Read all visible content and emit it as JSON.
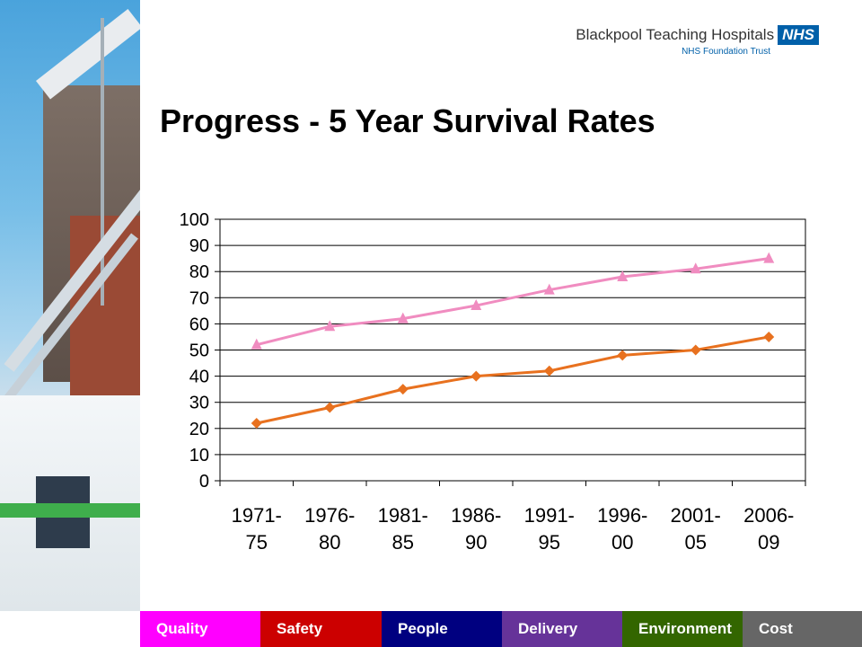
{
  "header": {
    "org_name": "Blackpool Teaching Hospitals",
    "nhs_badge": "NHS",
    "org_sub": "NHS Foundation Trust"
  },
  "title": "Progress - 5 Year Survival Rates",
  "chart_data": {
    "type": "line",
    "categories": [
      "1971-75",
      "1976-80",
      "1981-85",
      "1986-90",
      "1991-95",
      "1996-00",
      "2001-05",
      "2006-09"
    ],
    "category_lines": [
      [
        "1971-",
        "75"
      ],
      [
        "1976-",
        "80"
      ],
      [
        "1981-",
        "85"
      ],
      [
        "1986-",
        "90"
      ],
      [
        "1991-",
        "95"
      ],
      [
        "1996-",
        "00"
      ],
      [
        "2001-",
        "05"
      ],
      [
        "2006-",
        "09"
      ]
    ],
    "series": [
      {
        "values": [
          52,
          59,
          62,
          67,
          73,
          78,
          81,
          85
        ],
        "color": "#f08cc0",
        "marker": "triangle"
      },
      {
        "values": [
          22,
          28,
          35,
          40,
          42,
          48,
          50,
          55
        ],
        "color": "#e8711f",
        "marker": "diamond"
      }
    ],
    "ylim": [
      0,
      100
    ],
    "yticks": [
      0,
      10,
      20,
      30,
      40,
      50,
      60,
      70,
      80,
      90,
      100
    ],
    "ytick_labels": [
      "0",
      "10",
      "20",
      "30",
      "40",
      "50",
      "60",
      "70",
      "80",
      "90",
      "100"
    ],
    "xlabel": "",
    "ylabel": "",
    "grid": true
  },
  "footer": {
    "items": [
      {
        "label": "Quality",
        "color": "#ff00ff"
      },
      {
        "label": "Safety",
        "color": "#cc0000"
      },
      {
        "label": "People",
        "color": "#000080"
      },
      {
        "label": "Delivery",
        "color": "#663399"
      },
      {
        "label": "Environment",
        "color": "#336600"
      },
      {
        "label": "Cost",
        "color": "#666666"
      }
    ]
  }
}
